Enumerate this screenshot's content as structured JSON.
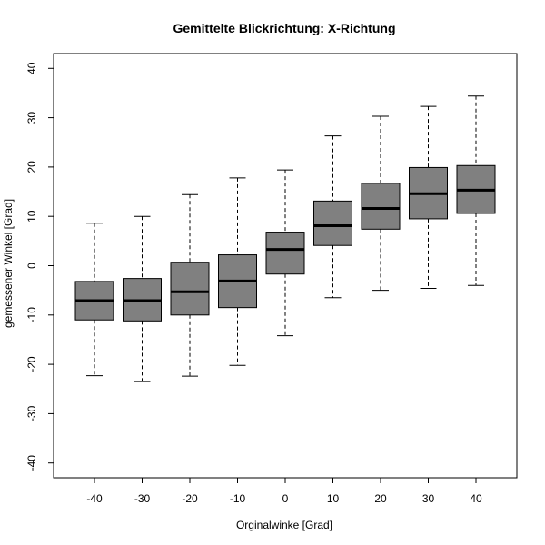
{
  "chart_data": {
    "type": "boxplot",
    "title": "Gemittelte Blickrichtung: X-Richtung",
    "xlabel": "Orginalwinke [Grad]",
    "ylabel": "gemessener Winkel [Grad]",
    "ylim": [
      -43,
      43
    ],
    "yticks": [
      -40,
      -30,
      -20,
      -10,
      0,
      10,
      20,
      30,
      40
    ],
    "categories": [
      "-40",
      "-30",
      "-20",
      "-10",
      "0",
      "10",
      "20",
      "30",
      "40"
    ],
    "boxes": [
      {
        "min": -22.3,
        "q1": -11.0,
        "median": -7.1,
        "q3": -3.2,
        "max": 8.6
      },
      {
        "min": -23.5,
        "q1": -11.2,
        "median": -7.1,
        "q3": -2.6,
        "max": 10.0
      },
      {
        "min": -22.4,
        "q1": -10.0,
        "median": -5.3,
        "q3": 0.7,
        "max": 14.4
      },
      {
        "min": -20.2,
        "q1": -8.5,
        "median": -3.1,
        "q3": 2.2,
        "max": 17.8
      },
      {
        "min": -14.2,
        "q1": -1.7,
        "median": 3.3,
        "q3": 6.8,
        "max": 19.4
      },
      {
        "min": -6.5,
        "q1": 4.1,
        "median": 8.1,
        "q3": 13.1,
        "max": 26.3
      },
      {
        "min": -5.0,
        "q1": 7.4,
        "median": 11.6,
        "q3": 16.7,
        "max": 30.3
      },
      {
        "min": -4.6,
        "q1": 9.5,
        "median": 14.6,
        "q3": 19.9,
        "max": 32.3
      },
      {
        "min": -4.0,
        "q1": 10.6,
        "median": 15.3,
        "q3": 20.3,
        "max": 34.4
      }
    ],
    "box_fill": "#808080",
    "grid": false,
    "legend": "none"
  }
}
